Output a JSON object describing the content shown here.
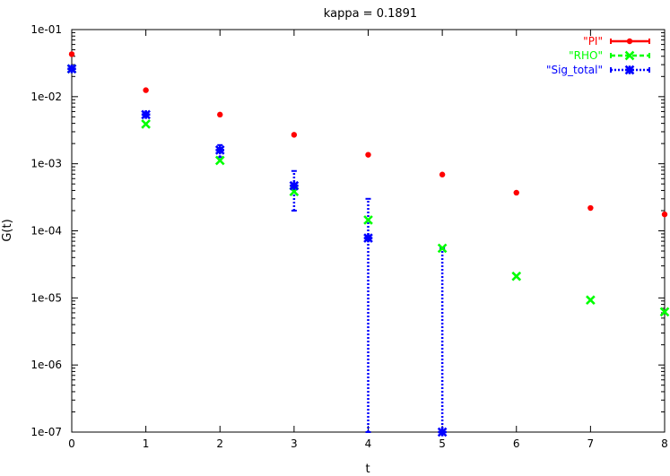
{
  "chart_data": {
    "type": "scatter",
    "title": "kappa = 0.1891",
    "xlabel": "t",
    "ylabel": "G(t)",
    "xlim": [
      0,
      8
    ],
    "ylim": [
      1e-07,
      0.1
    ],
    "yscale": "log",
    "grid": false,
    "legend_position": "top-right",
    "x_ticks": [
      "0",
      "1",
      "2",
      "3",
      "4",
      "5",
      "6",
      "7",
      "8"
    ],
    "y_ticks": [
      "1e-07",
      "1e-06",
      "1e-05",
      "1e-04",
      "1e-03",
      "1e-02",
      "1e-01"
    ],
    "series": [
      {
        "name": "\"PI\"",
        "color": "#ff0000",
        "marker": "circle",
        "points": [
          {
            "x": 0,
            "y": 0.043
          },
          {
            "x": 1,
            "y": 0.0125
          },
          {
            "x": 2,
            "y": 0.0054
          },
          {
            "x": 3,
            "y": 0.0027
          },
          {
            "x": 4,
            "y": 0.00136
          },
          {
            "x": 5,
            "y": 0.00069
          },
          {
            "x": 6,
            "y": 0.00037
          },
          {
            "x": 7,
            "y": 0.000219
          },
          {
            "x": 8,
            "y": 0.000176
          }
        ]
      },
      {
        "name": "\"RHO\"",
        "color": "#00ff00",
        "marker": "x",
        "points": [
          {
            "x": 0,
            "y": 0.026
          },
          {
            "x": 1,
            "y": 0.0039
          },
          {
            "x": 2,
            "y": 0.00112
          },
          {
            "x": 3,
            "y": 0.000385
          },
          {
            "x": 4,
            "y": 0.000145
          },
          {
            "x": 5,
            "y": 5.5e-05
          },
          {
            "x": 6,
            "y": 2.1e-05
          },
          {
            "x": 7,
            "y": 9.3e-06
          },
          {
            "x": 8,
            "y": 6.2e-06
          }
        ]
      },
      {
        "name": "\"Sig_total\"",
        "color": "#0000ff",
        "marker": "star",
        "points": [
          {
            "x": 0,
            "y": 0.026,
            "ylo": 0.025,
            "yhi": 0.027
          },
          {
            "x": 1,
            "y": 0.0054,
            "ylo": 0.0052,
            "yhi": 0.0056
          },
          {
            "x": 2,
            "y": 0.0016,
            "ylo": 0.00125,
            "yhi": 0.0019
          },
          {
            "x": 3,
            "y": 0.00047,
            "ylo": 0.0002,
            "yhi": 0.00078
          },
          {
            "x": 4,
            "y": 7.8e-05,
            "ylo": 1e-07,
            "yhi": 0.0003
          },
          {
            "x": 5,
            "y": 1e-07,
            "ylo": 1e-07,
            "yhi": 5.5e-05
          }
        ]
      }
    ]
  }
}
